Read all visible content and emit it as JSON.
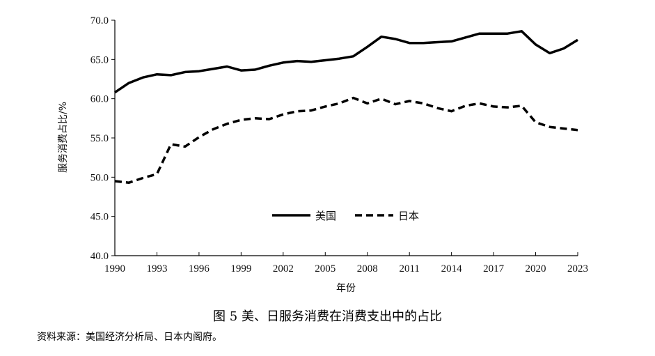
{
  "figure": {
    "caption": "图 5  美、日服务消费在消费支出中的占比",
    "source": "资料来源：美国经济分析局、日本内阁府。"
  },
  "chart_data": {
    "type": "line",
    "xlabel": "年份",
    "ylabel": "服务消费占比/%",
    "ylim": [
      40,
      70
    ],
    "xlim": [
      1990,
      2023
    ],
    "y_ticks": [
      "40.0",
      "45.0",
      "50.0",
      "55.0",
      "60.0",
      "65.0",
      "70.0"
    ],
    "x_ticks": [
      "1990",
      "1993",
      "1996",
      "1999",
      "2002",
      "2005",
      "2008",
      "2011",
      "2014",
      "2017",
      "2020",
      "2023"
    ],
    "legend_position": "center",
    "grid": false,
    "x": [
      1990,
      1991,
      1992,
      1993,
      1994,
      1995,
      1996,
      1997,
      1998,
      1999,
      2000,
      2001,
      2002,
      2003,
      2004,
      2005,
      2006,
      2007,
      2008,
      2009,
      2010,
      2011,
      2012,
      2013,
      2014,
      2015,
      2016,
      2017,
      2018,
      2019,
      2020,
      2021,
      2022,
      2023
    ],
    "series": [
      {
        "name": "美国",
        "style": "solid",
        "color": "#000000",
        "values": [
          60.8,
          62.0,
          62.7,
          63.1,
          63.0,
          63.4,
          63.5,
          63.8,
          64.1,
          63.6,
          63.7,
          64.2,
          64.6,
          64.8,
          64.7,
          64.9,
          65.1,
          65.4,
          66.6,
          67.9,
          67.6,
          67.1,
          67.1,
          67.2,
          67.3,
          67.8,
          68.3,
          68.3,
          68.3,
          68.6,
          66.9,
          65.8,
          66.4,
          67.5
        ]
      },
      {
        "name": "日本",
        "style": "dashed",
        "color": "#000000",
        "values": [
          49.5,
          49.3,
          49.9,
          50.4,
          54.2,
          53.9,
          55.1,
          56.1,
          56.8,
          57.3,
          57.5,
          57.4,
          58.0,
          58.4,
          58.5,
          59.0,
          59.4,
          60.1,
          59.4,
          60.0,
          59.3,
          59.7,
          59.4,
          58.8,
          58.4,
          59.1,
          59.4,
          59.0,
          58.9,
          59.1,
          57.0,
          56.4,
          56.2,
          56.0
        ]
      }
    ]
  }
}
